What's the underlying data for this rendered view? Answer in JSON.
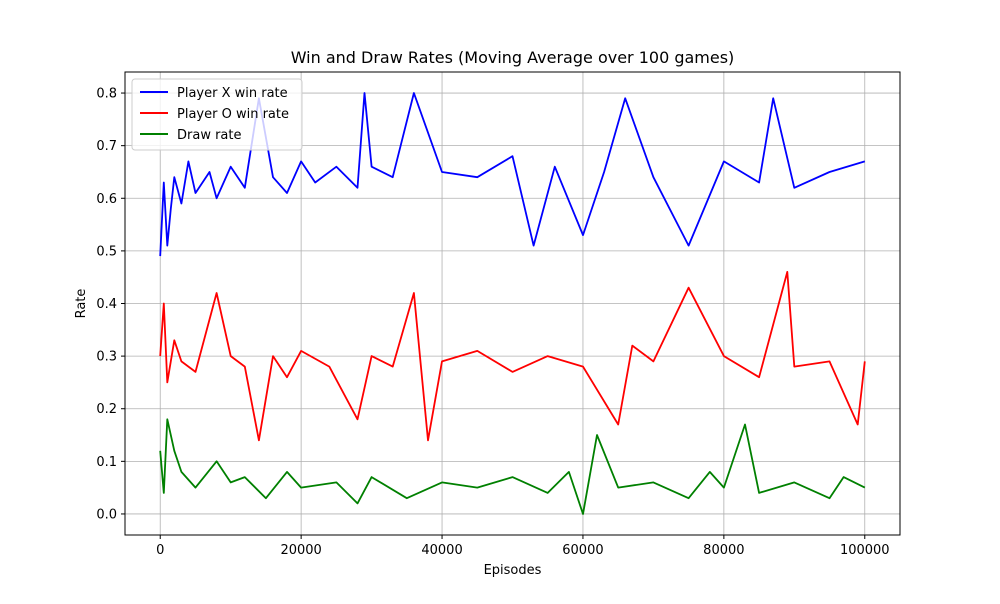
{
  "chart_data": {
    "type": "line",
    "title": "Win and Draw Rates (Moving Average over 100 games)",
    "xlabel": "Episodes",
    "ylabel": "Rate",
    "xlim": [
      -5000,
      105000
    ],
    "ylim": [
      -0.04,
      0.84
    ],
    "x_ticks": [
      0,
      20000,
      40000,
      60000,
      80000,
      100000
    ],
    "y_ticks": [
      0.0,
      0.1,
      0.2,
      0.3,
      0.4,
      0.5,
      0.6,
      0.7,
      0.8
    ],
    "grid": true,
    "legend_position": "top-left",
    "series": [
      {
        "name": "Player X win rate",
        "color": "#0000ff",
        "x": [
          0,
          500,
          1000,
          1500,
          2000,
          3000,
          4000,
          5000,
          6000,
          7000,
          8000,
          10000,
          12000,
          14000,
          16000,
          18000,
          20000,
          22000,
          25000,
          28000,
          29000,
          30000,
          33000,
          36000,
          40000,
          45000,
          50000,
          53000,
          56000,
          60000,
          63000,
          66000,
          70000,
          75000,
          80000,
          85000,
          87000,
          90000,
          95000,
          100000
        ],
        "values": [
          0.49,
          0.63,
          0.51,
          0.58,
          0.64,
          0.59,
          0.67,
          0.61,
          0.63,
          0.65,
          0.6,
          0.66,
          0.62,
          0.79,
          0.64,
          0.61,
          0.67,
          0.63,
          0.66,
          0.62,
          0.8,
          0.66,
          0.64,
          0.8,
          0.65,
          0.64,
          0.68,
          0.51,
          0.66,
          0.53,
          0.65,
          0.79,
          0.64,
          0.51,
          0.67,
          0.63,
          0.79,
          0.62,
          0.65,
          0.67
        ]
      },
      {
        "name": "Player O win rate",
        "color": "#ff0000",
        "x": [
          0,
          500,
          1000,
          2000,
          3000,
          5000,
          8000,
          10000,
          12000,
          14000,
          16000,
          18000,
          20000,
          24000,
          28000,
          30000,
          33000,
          36000,
          38000,
          40000,
          45000,
          50000,
          55000,
          60000,
          65000,
          67000,
          70000,
          75000,
          80000,
          85000,
          89000,
          90000,
          95000,
          99000,
          100000
        ],
        "values": [
          0.3,
          0.4,
          0.25,
          0.33,
          0.29,
          0.27,
          0.42,
          0.3,
          0.28,
          0.14,
          0.3,
          0.26,
          0.31,
          0.28,
          0.18,
          0.3,
          0.28,
          0.42,
          0.14,
          0.29,
          0.31,
          0.27,
          0.3,
          0.28,
          0.17,
          0.32,
          0.29,
          0.43,
          0.3,
          0.26,
          0.46,
          0.28,
          0.29,
          0.17,
          0.29
        ]
      },
      {
        "name": "Draw rate",
        "color": "#008000",
        "x": [
          0,
          500,
          1000,
          2000,
          3000,
          5000,
          8000,
          10000,
          12000,
          15000,
          18000,
          20000,
          25000,
          28000,
          30000,
          35000,
          40000,
          45000,
          50000,
          55000,
          58000,
          60000,
          62000,
          65000,
          70000,
          75000,
          78000,
          80000,
          83000,
          85000,
          90000,
          95000,
          97000,
          100000
        ],
        "values": [
          0.12,
          0.04,
          0.18,
          0.12,
          0.08,
          0.05,
          0.1,
          0.06,
          0.07,
          0.03,
          0.08,
          0.05,
          0.06,
          0.02,
          0.07,
          0.03,
          0.06,
          0.05,
          0.07,
          0.04,
          0.08,
          0.0,
          0.15,
          0.05,
          0.06,
          0.03,
          0.08,
          0.05,
          0.17,
          0.04,
          0.06,
          0.03,
          0.07,
          0.05
        ]
      }
    ]
  }
}
